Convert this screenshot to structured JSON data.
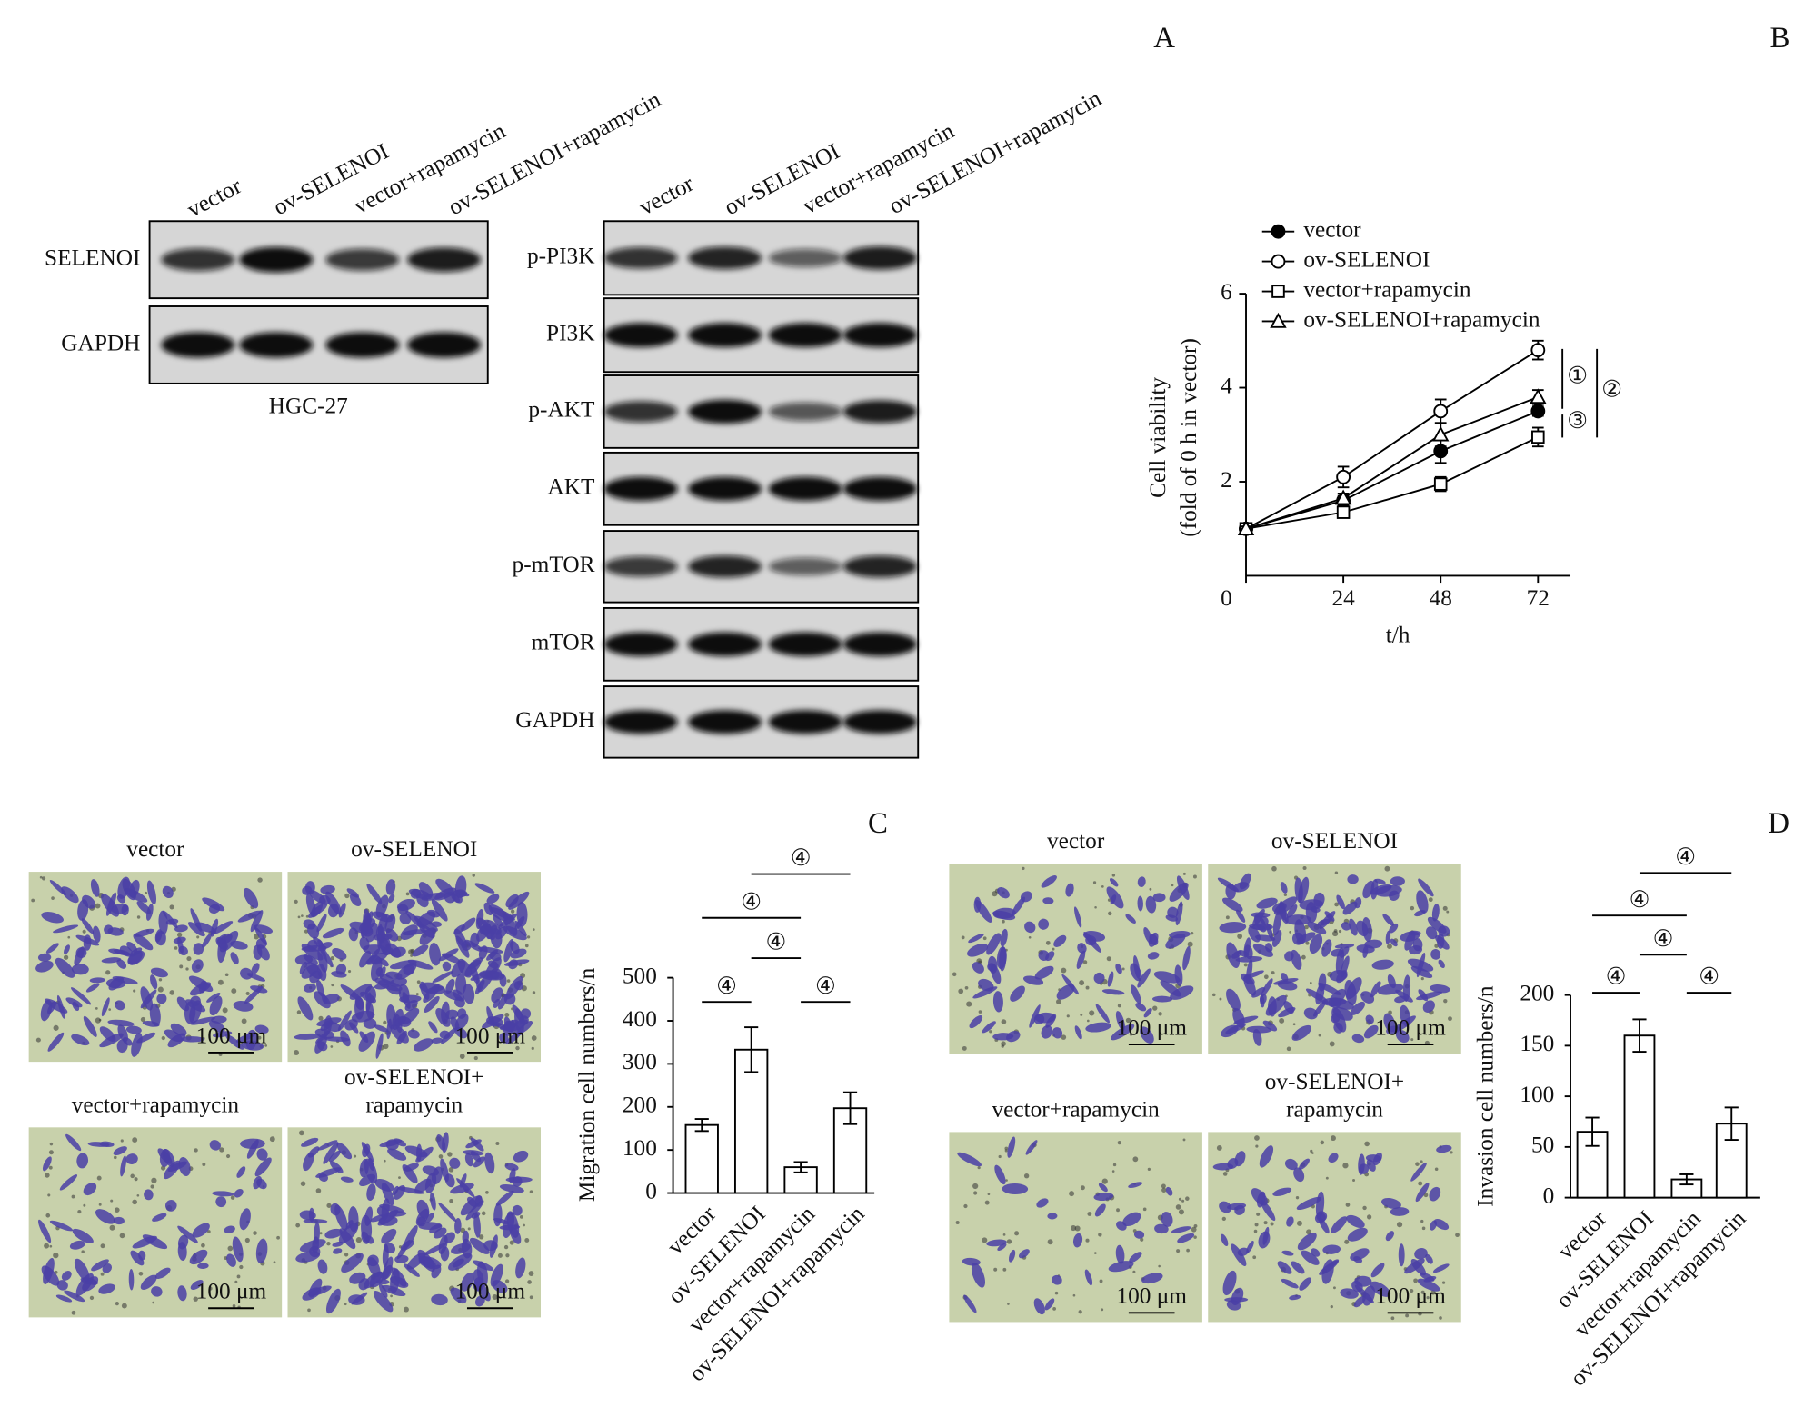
{
  "panel_labels": [
    "A",
    "B",
    "C",
    "D"
  ],
  "blot_1": {
    "lanes": [
      "vector",
      "ov-SELENOI",
      "vector+rapamycin",
      "ov-SELENOI+rapamycin"
    ],
    "proteins": [
      "SELENOI",
      "GAPDH"
    ],
    "cell_line": "HGC-27"
  },
  "blot_2": {
    "lanes": [
      "vector",
      "ov-SELENOI",
      "vector+rapamycin",
      "ov-SELENOI+rapamycin"
    ],
    "proteins": [
      "p-PI3K",
      "PI3K",
      "p-AKT",
      "AKT",
      "p-mTOR",
      "mTOR",
      "GAPDH"
    ]
  },
  "migration_images": {
    "titles": [
      [
        "vector"
      ],
      [
        "ov-SELENOI"
      ],
      [
        "vector+rapamycin"
      ],
      [
        "ov-SELENOI+",
        "rapamycin"
      ]
    ],
    "scale_bar": "100 μm"
  },
  "invasion_images": {
    "titles": [
      [
        "vector"
      ],
      [
        "ov-SELENOI"
      ],
      [
        "vector+rapamycin"
      ],
      [
        "ov-SELENOI+",
        "rapamycin"
      ]
    ],
    "scale_bar": "100 μm"
  },
  "chart_data": [
    {
      "type": "line",
      "x_label": "t/h",
      "y_label": [
        "Cell viability",
        "(fold of 0 h in vector)"
      ],
      "x": [
        0,
        24,
        48,
        72
      ],
      "xlim": [
        0,
        80
      ],
      "xticks": [
        0,
        24,
        48,
        72
      ],
      "ylim": [
        0,
        6
      ],
      "yticks": [
        2,
        4,
        6
      ],
      "series": [
        {
          "name": "vector",
          "marker": "circle-filled",
          "color": "#000000",
          "values": [
            1,
            1.6,
            2.65,
            3.5
          ],
          "errors": [
            0.05,
            0.1,
            0.25,
            0.1
          ]
        },
        {
          "name": "ov-SELENOI",
          "marker": "circle-open",
          "color": "#000000",
          "values": [
            1,
            2.1,
            3.5,
            4.8
          ],
          "errors": [
            0.05,
            0.22,
            0.25,
            0.2
          ]
        },
        {
          "name": "vector+rapamycin",
          "marker": "square-open",
          "color": "#000000",
          "values": [
            1,
            1.35,
            1.95,
            2.95
          ],
          "errors": [
            0.05,
            0.1,
            0.15,
            0.2
          ]
        },
        {
          "name": "ov-SELENOI+rapamycin",
          "marker": "triangle-open",
          "color": "#000000",
          "values": [
            1,
            1.65,
            3.0,
            3.8
          ],
          "errors": [
            0.05,
            0.1,
            0.25,
            0.15
          ]
        }
      ],
      "annotations": [
        "①",
        "②",
        "③"
      ]
    },
    {
      "type": "bar",
      "y_label": "Migration cell numbers/n",
      "categories": [
        "vector",
        "ov-SELENOI",
        "vector+rapamycin",
        "ov-SELENOI+rapamycin"
      ],
      "values": [
        158,
        333,
        60,
        197
      ],
      "errors": [
        14,
        52,
        12,
        37
      ],
      "color": "#ffffff",
      "ylim": [
        0,
        500
      ],
      "yticks": [
        0,
        100,
        200,
        300,
        400,
        500
      ],
      "significance": [
        {
          "groups": [
            0,
            1
          ],
          "label": "④"
        },
        {
          "groups": [
            2,
            3
          ],
          "label": "④"
        },
        {
          "groups": [
            1,
            2
          ],
          "label": "④"
        },
        {
          "groups": [
            0,
            2
          ],
          "label": "④"
        },
        {
          "groups": [
            1,
            3
          ],
          "label": "④"
        }
      ]
    },
    {
      "type": "bar",
      "y_label": "Invasion cell numbers/n",
      "categories": [
        "vector",
        "ov-SELENOI",
        "vector+rapamycin",
        "ov-SELENOI+rapamycin"
      ],
      "values": [
        65,
        160,
        18,
        73
      ],
      "errors": [
        14,
        16,
        5,
        16
      ],
      "color": "#ffffff",
      "ylim": [
        0,
        200
      ],
      "yticks": [
        0,
        50,
        100,
        150,
        200
      ],
      "significance": [
        {
          "groups": [
            0,
            1
          ],
          "label": "④"
        },
        {
          "groups": [
            2,
            3
          ],
          "label": "④"
        },
        {
          "groups": [
            1,
            2
          ],
          "label": "④"
        },
        {
          "groups": [
            0,
            2
          ],
          "label": "④"
        },
        {
          "groups": [
            1,
            3
          ],
          "label": "④"
        }
      ]
    }
  ]
}
